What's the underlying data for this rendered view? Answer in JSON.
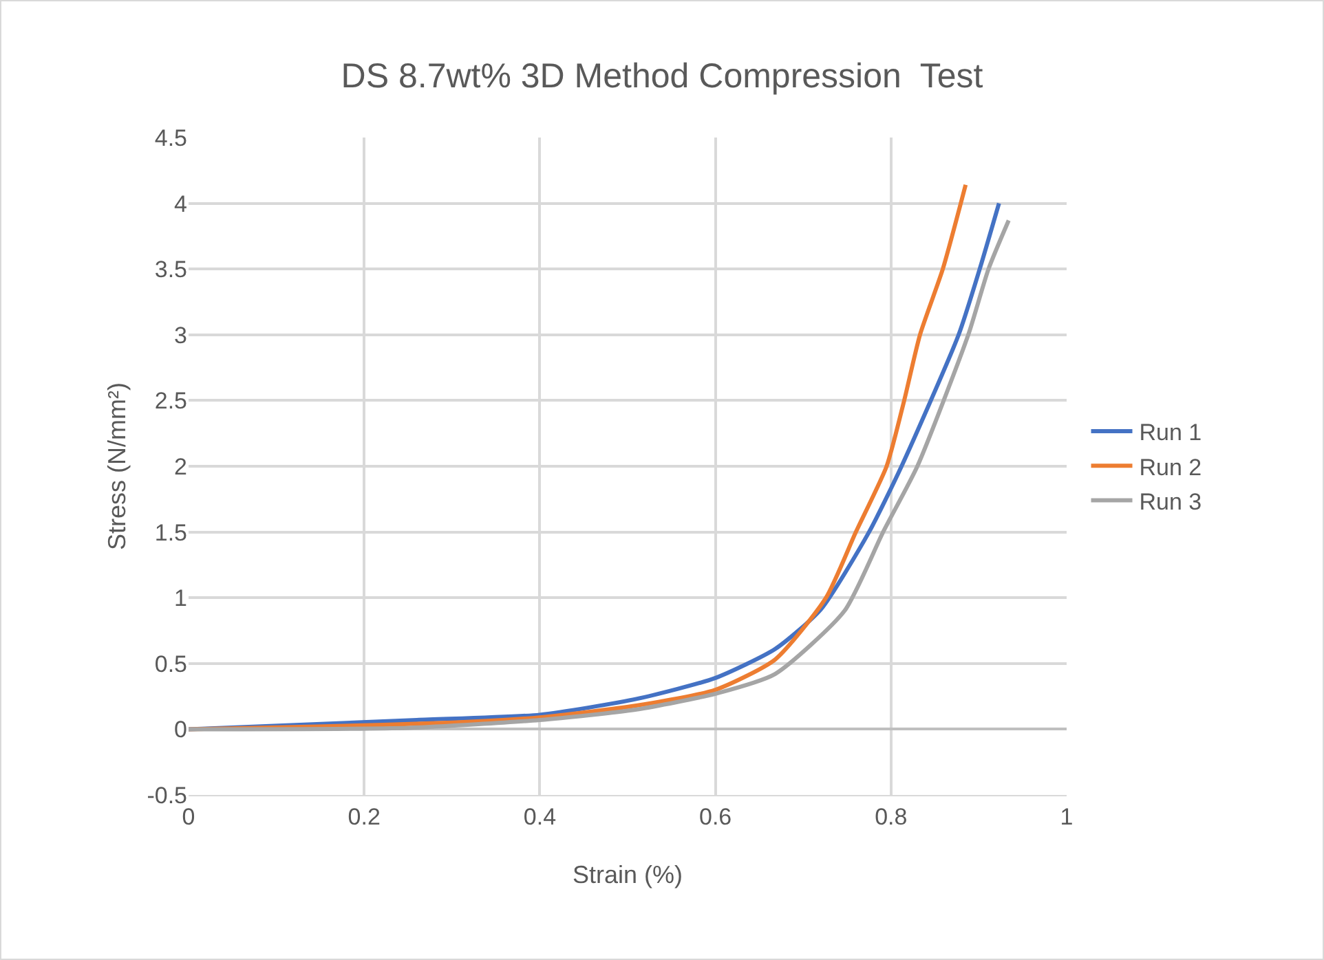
{
  "chart_data": {
    "type": "line",
    "title": "DS 8.7wt% 3D Method Compression  Test",
    "xlabel": "Strain (%)",
    "ylabel": "Stress (N/mm²)",
    "xlim": [
      0,
      1
    ],
    "xticks": [
      0,
      0.2,
      0.4,
      0.6,
      0.8,
      1
    ],
    "ylim": [
      -0.5,
      4.5
    ],
    "yticks": [
      -0.5,
      0,
      0.5,
      1,
      1.5,
      2,
      2.5,
      3,
      3.5,
      4,
      4.5
    ],
    "grid": true,
    "legend": "right",
    "marker": "none",
    "line_style": "solid",
    "series": [
      {
        "name": "Run 1",
        "color": "#4472c4",
        "x": [
          0,
          0.26,
          0.4,
          0.51,
          0.6,
          0.668,
          0.72,
          0.775,
          0.812,
          0.877,
          0.901,
          0.923
        ],
        "values": [
          0,
          0.07,
          0.11,
          0.23,
          0.39,
          0.61,
          0.91,
          1.5,
          2,
          3,
          3.5,
          4
        ]
      },
      {
        "name": "Run 2",
        "color": "#ed7d31",
        "x": [
          0,
          0.146,
          0.3,
          0.4,
          0.51,
          0.6,
          0.668,
          0.726,
          0.76,
          0.795,
          0.815,
          0.833,
          0.859,
          0.885
        ],
        "values": [
          0,
          0.02,
          0.05,
          0.09,
          0.18,
          0.3,
          0.53,
          1,
          1.5,
          2,
          2.5,
          3,
          3.5,
          4.14
        ]
      },
      {
        "name": "Run 3",
        "color": "#a5a5a5",
        "x": [
          0,
          0.25,
          0.4,
          0.51,
          0.6,
          0.668,
          0.747,
          0.791,
          0.83,
          0.888,
          0.911,
          0.934
        ],
        "values": [
          0,
          0.01,
          0.07,
          0.15,
          0.27,
          0.42,
          0.9,
          1.5,
          2,
          3,
          3.5,
          3.87
        ]
      }
    ]
  }
}
